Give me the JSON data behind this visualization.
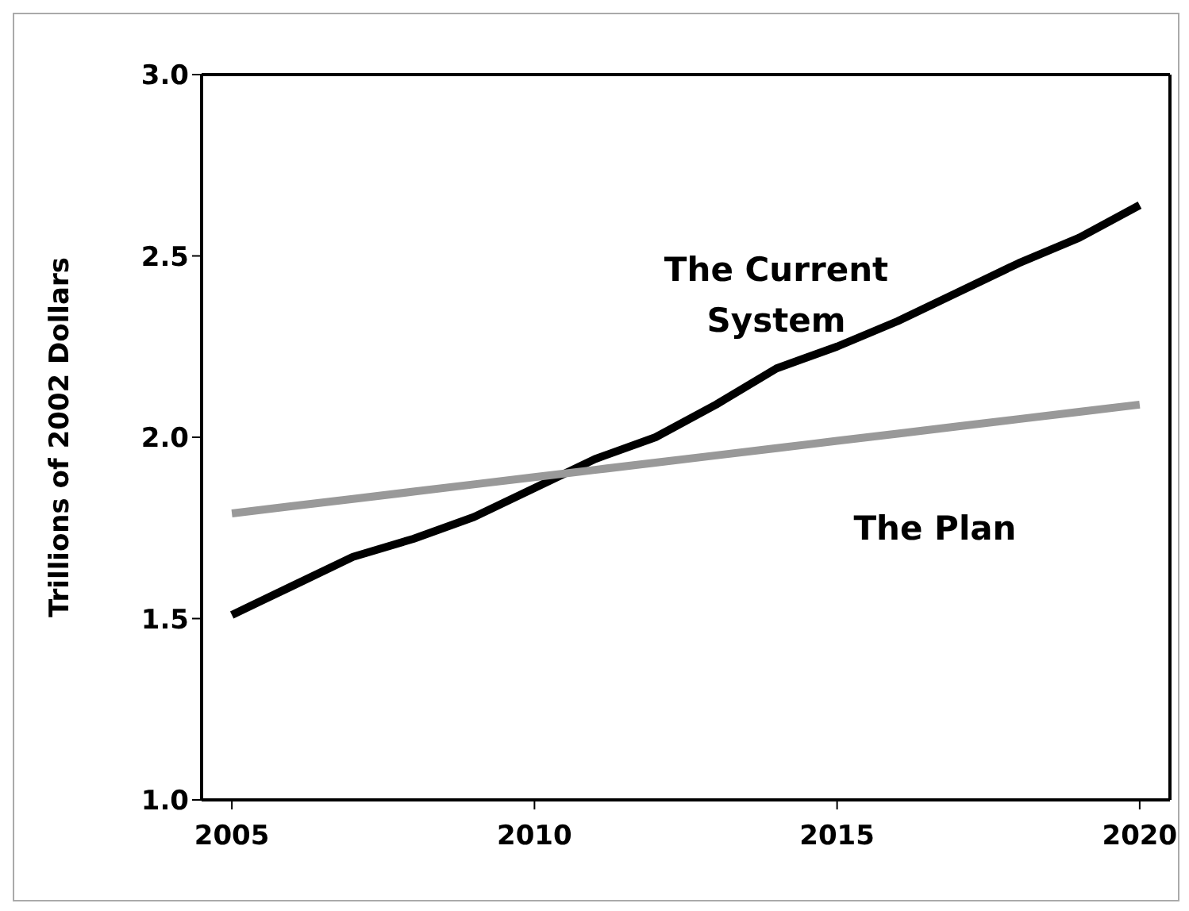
{
  "chart_data": {
    "type": "line",
    "ylabel": "Trillions of 2002 Dollars",
    "x": [
      2005,
      2006,
      2007,
      2008,
      2009,
      2010,
      2011,
      2012,
      2013,
      2014,
      2015,
      2016,
      2017,
      2018,
      2019,
      2020
    ],
    "series": [
      {
        "name": "The Current System",
        "color": "#000000",
        "values": [
          1.51,
          1.59,
          1.67,
          1.72,
          1.78,
          1.86,
          1.94,
          2.0,
          2.09,
          2.19,
          2.25,
          2.32,
          2.4,
          2.48,
          2.55,
          2.64
        ]
      },
      {
        "name": "The Plan",
        "color": "#999999",
        "values": [
          1.79,
          1.81,
          1.83,
          1.85,
          1.87,
          1.89,
          1.91,
          1.93,
          1.95,
          1.97,
          1.99,
          2.01,
          2.03,
          2.05,
          2.07,
          2.09
        ]
      }
    ],
    "xlim": [
      2004.5,
      2020.5
    ],
    "xticks": [
      2005,
      2010,
      2015,
      2020
    ],
    "ylim": [
      1,
      3
    ],
    "yticks": [
      {
        "value": 1,
        "label": "1.0"
      },
      {
        "value": 1.5,
        "label": "1.5"
      },
      {
        "value": 2,
        "label": "2.0"
      },
      {
        "value": 2.5,
        "label": "2.5"
      },
      {
        "value": 3,
        "label": "3.0"
      }
    ],
    "grid": false,
    "legend": false,
    "marker": "none",
    "line_style": "solid"
  }
}
